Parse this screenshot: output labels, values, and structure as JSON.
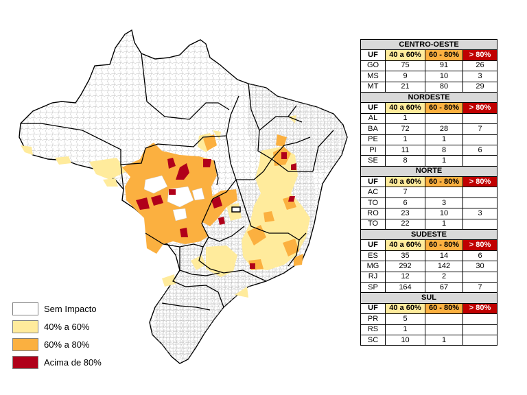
{
  "colors": {
    "none": "#ffffff",
    "range_40_60": "#ffeb9c",
    "range_60_80": "#fbb040",
    "above_80": "#b0001a"
  },
  "legend": [
    {
      "label": "Sem Impacto",
      "color": "#ffffff"
    },
    {
      "label": "40% a 60%",
      "color": "#ffeb9c"
    },
    {
      "label": "60% a 80%",
      "color": "#fbb040"
    },
    {
      "label": "Acima de 80%",
      "color": "#b0001a"
    }
  ],
  "table_headers": {
    "uf": "UF",
    "a": "40 a 60%",
    "b": "60 - 80%",
    "c": "> 80%"
  },
  "regions": [
    {
      "name": "CENTRO-OESTE",
      "rows": [
        {
          "uf": "GO",
          "a": "75",
          "b": "91",
          "c": "26"
        },
        {
          "uf": "MS",
          "a": "9",
          "b": "10",
          "c": "3"
        },
        {
          "uf": "MT",
          "a": "21",
          "b": "80",
          "c": "29"
        }
      ]
    },
    {
      "name": "NORDESTE",
      "rows": [
        {
          "uf": "AL",
          "a": "1",
          "b": "",
          "c": ""
        },
        {
          "uf": "BA",
          "a": "72",
          "b": "28",
          "c": "7"
        },
        {
          "uf": "PE",
          "a": "1",
          "b": "1",
          "c": ""
        },
        {
          "uf": "PI",
          "a": "11",
          "b": "8",
          "c": "6"
        },
        {
          "uf": "SE",
          "a": "8",
          "b": "1",
          "c": ""
        }
      ]
    },
    {
      "name": "NORTE",
      "rows": [
        {
          "uf": "AC",
          "a": "7",
          "b": "",
          "c": ""
        },
        {
          "uf": "TO",
          "a": "6",
          "b": "3",
          "c": ""
        },
        {
          "uf": "RO",
          "a": "23",
          "b": "10",
          "c": "3"
        },
        {
          "uf": "TO",
          "a": "22",
          "b": "1",
          "c": ""
        }
      ]
    },
    {
      "name": "SUDESTE",
      "rows": [
        {
          "uf": "ES",
          "a": "35",
          "b": "14",
          "c": "6"
        },
        {
          "uf": "MG",
          "a": "292",
          "b": "142",
          "c": "30"
        },
        {
          "uf": "RJ",
          "a": "12",
          "b": "2",
          "c": ""
        },
        {
          "uf": "SP",
          "a": "164",
          "b": "67",
          "c": "7"
        }
      ]
    },
    {
      "name": "SUL",
      "rows": [
        {
          "uf": "PR",
          "a": "5",
          "b": "",
          "c": ""
        },
        {
          "uf": "RS",
          "a": "1",
          "b": "",
          "c": ""
        },
        {
          "uf": "SC",
          "a": "10",
          "b": "1",
          "c": ""
        }
      ]
    }
  ]
}
